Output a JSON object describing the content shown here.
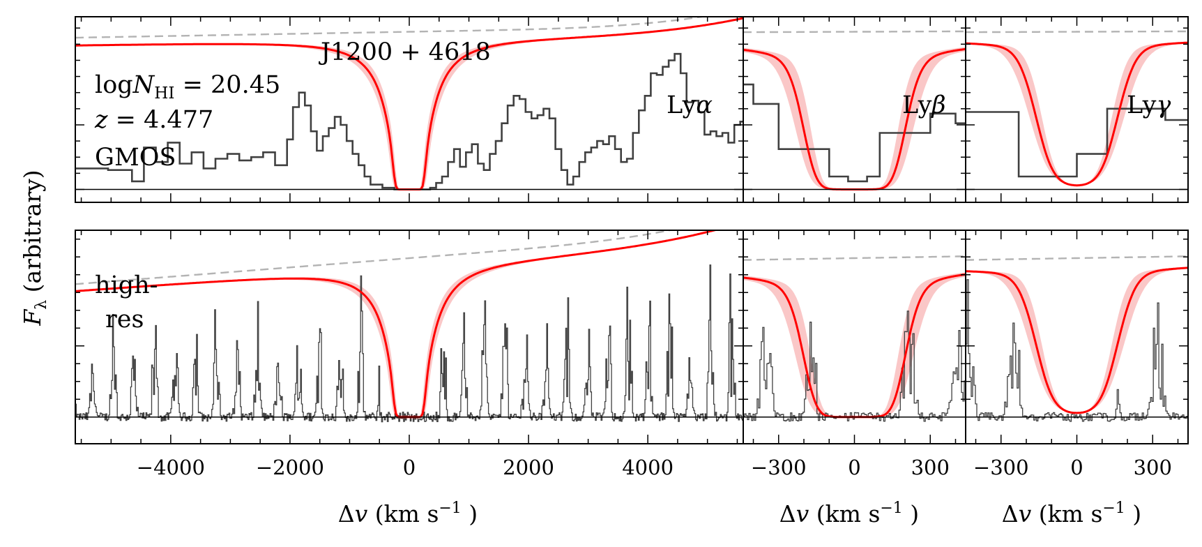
{
  "chart_data": {
    "type": "line",
    "object_name": "J1200 + 4618",
    "ylabel": {
      "main": "F",
      "sub": "λ",
      "suffix": " (arbitrary)"
    },
    "xlabel": {
      "delta": "Δ",
      "var": "v",
      "unit": " (km s",
      "sup": "−1",
      "close": " )"
    },
    "annotations": {
      "logN_prefix": "log",
      "logN_var": "N",
      "logN_sub": "HI",
      "logN_value": " = 20.45",
      "z_var": "z",
      "z_value": " = 4.477",
      "instrument": "GMOS",
      "highres_line1": "high-",
      "highres_line2": "res"
    },
    "colors": {
      "model": "#ff0000",
      "model_band": "#f7a1a1",
      "continuum": "#b3b3b3",
      "spectrum": "#404040",
      "zero": "#000000"
    },
    "columns": [
      {
        "id": "lya",
        "ion_prefix": "Ly",
        "ion_greek": "α",
        "xlim": [
          -5600,
          5600
        ],
        "ticks": [
          -4000,
          -2000,
          0,
          2000,
          4000
        ],
        "tick_labels": [
          "−4000",
          "−2000",
          "0",
          "2000",
          "4000"
        ],
        "minor_step": 500,
        "b": 125,
        "tau_scale": 6.2,
        "gmos_ylim": [
          -0.08,
          1.07
        ],
        "gmos_continuum": {
          "level": 0.93,
          "slope": 0.035,
          "curve": 0.1
        },
        "gmos_spectrum": [
          [
            -5600,
            0.13
          ],
          [
            -5000,
            0.12
          ],
          [
            -4600,
            0.05
          ],
          [
            -4400,
            0.26
          ],
          [
            -4200,
            0.17
          ],
          [
            -4000,
            0.29
          ],
          [
            -3800,
            0.16
          ],
          [
            -3600,
            0.23
          ],
          [
            -3400,
            0.13
          ],
          [
            -3200,
            0.19
          ],
          [
            -3000,
            0.22
          ],
          [
            -2800,
            0.18
          ],
          [
            -2600,
            0.2
          ],
          [
            -2400,
            0.23
          ],
          [
            -2200,
            0.15
          ],
          [
            -2000,
            0.31
          ],
          [
            -1900,
            0.51
          ],
          [
            -1800,
            0.6
          ],
          [
            -1700,
            0.52
          ],
          [
            -1600,
            0.36
          ],
          [
            -1500,
            0.24
          ],
          [
            -1400,
            0.33
          ],
          [
            -1300,
            0.38
          ],
          [
            -1200,
            0.45
          ],
          [
            -1100,
            0.4
          ],
          [
            -1000,
            0.3
          ],
          [
            -900,
            0.22
          ],
          [
            -800,
            0.15
          ],
          [
            -700,
            0.08
          ],
          [
            -600,
            0.03
          ],
          [
            -400,
            0.01
          ],
          [
            -200,
            0.0
          ],
          [
            0,
            0.0
          ],
          [
            200,
            0.0
          ],
          [
            400,
            0.01
          ],
          [
            500,
            0.04
          ],
          [
            600,
            0.08
          ],
          [
            700,
            0.17
          ],
          [
            800,
            0.25
          ],
          [
            900,
            0.14
          ],
          [
            1000,
            0.23
          ],
          [
            1100,
            0.28
          ],
          [
            1200,
            0.16
          ],
          [
            1300,
            0.12
          ],
          [
            1400,
            0.22
          ],
          [
            1500,
            0.3
          ],
          [
            1600,
            0.41
          ],
          [
            1700,
            0.52
          ],
          [
            1800,
            0.58
          ],
          [
            1900,
            0.56
          ],
          [
            2000,
            0.48
          ],
          [
            2100,
            0.44
          ],
          [
            2200,
            0.46
          ],
          [
            2300,
            0.5
          ],
          [
            2400,
            0.44
          ],
          [
            2500,
            0.25
          ],
          [
            2600,
            0.12
          ],
          [
            2700,
            0.03
          ],
          [
            2800,
            0.08
          ],
          [
            2900,
            0.17
          ],
          [
            3000,
            0.23
          ],
          [
            3100,
            0.26
          ],
          [
            3200,
            0.3
          ],
          [
            3300,
            0.28
          ],
          [
            3400,
            0.33
          ],
          [
            3500,
            0.25
          ],
          [
            3600,
            0.17
          ],
          [
            3700,
            0.19
          ],
          [
            3800,
            0.35
          ],
          [
            3900,
            0.49
          ],
          [
            4000,
            0.58
          ],
          [
            4100,
            0.72
          ],
          [
            4200,
            0.71
          ],
          [
            4300,
            0.76
          ],
          [
            4400,
            0.8
          ],
          [
            4500,
            0.84
          ],
          [
            4600,
            0.72
          ],
          [
            4700,
            0.54
          ],
          [
            4800,
            0.55
          ],
          [
            4900,
            0.48
          ],
          [
            5000,
            0.34
          ],
          [
            5100,
            0.36
          ],
          [
            5200,
            0.33
          ],
          [
            5300,
            0.35
          ],
          [
            5400,
            0.29
          ],
          [
            5500,
            0.4
          ],
          [
            5600,
            0.42
          ]
        ],
        "hr_ylim": [
          -0.15,
          1.05
        ],
        "hr_continuum": {
          "level": 0.85,
          "slope": 0.14,
          "curve": 0.11
        }
      },
      {
        "id": "lyb",
        "ion_prefix": "Ly",
        "ion_greek": "β",
        "xlim": [
          -440,
          440
        ],
        "ticks": [
          -300,
          0,
          300
        ],
        "tick_labels": [
          "−300",
          "0",
          "300"
        ],
        "minor_step": 100,
        "b": 125,
        "tau_scale": 0.62,
        "gmos_ylim": [
          -0.08,
          1.07
        ],
        "gmos_continuum": {
          "level": 0.93,
          "slope": 0.035,
          "curve": 0.1
        },
        "gmos_step": [
          [
            -440,
            0.65
          ],
          [
            -400,
            0.53
          ],
          [
            -300,
            0.25
          ],
          [
            -200,
            0.25
          ],
          [
            -100,
            0.08
          ],
          [
            -25,
            0.05
          ],
          [
            50,
            0.08
          ],
          [
            100,
            0.35
          ],
          [
            200,
            0.35
          ],
          [
            300,
            0.47
          ],
          [
            400,
            0.41
          ],
          [
            440,
            0.41
          ]
        ],
        "hr_ylim": [
          -0.15,
          1.05
        ],
        "hr_continuum": {
          "level": 0.85,
          "slope": 0.14,
          "curve": 0.11
        }
      },
      {
        "id": "lyg",
        "ion_prefix": "Ly",
        "ion_greek": "γ",
        "xlim": [
          -440,
          440
        ],
        "ticks": [
          -300,
          0,
          300
        ],
        "tick_labels": [
          "−300",
          "0",
          "300"
        ],
        "minor_step": 100,
        "b": 125,
        "tau_scale": 0.22,
        "gmos_ylim": [
          -0.08,
          1.07
        ],
        "gmos_continuum": {
          "level": 0.93,
          "slope": 0.035,
          "curve": 0.1
        },
        "gmos_step": [
          [
            -440,
            0.48
          ],
          [
            -370,
            0.48
          ],
          [
            -230,
            0.08
          ],
          [
            -100,
            0.08
          ],
          [
            0,
            0.22
          ],
          [
            110,
            0.22
          ],
          [
            120,
            0.5
          ],
          [
            300,
            0.5
          ],
          [
            350,
            0.43
          ],
          [
            440,
            0.43
          ]
        ],
        "hr_ylim": [
          -0.15,
          1.05
        ],
        "hr_continuum": {
          "level": 0.85,
          "slope": 0.14,
          "curve": 0.11
        }
      }
    ]
  }
}
